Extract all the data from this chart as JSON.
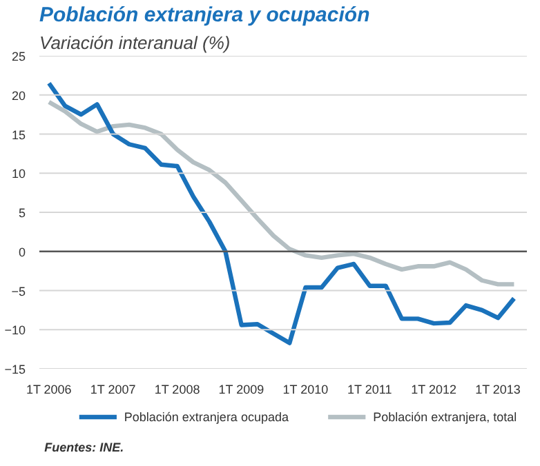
{
  "chart_data": {
    "type": "line",
    "title": "Población extranjera y ocupación",
    "subtitle": "Variación interanual (%)",
    "categories": [
      "1T 2006",
      null,
      null,
      null,
      "1T 2007",
      null,
      null,
      null,
      "1T 2008",
      null,
      null,
      null,
      "1T 2009",
      null,
      null,
      null,
      "1T 2010",
      null,
      null,
      null,
      "1T 2011",
      null,
      null,
      null,
      "1T 2012",
      null,
      null,
      null,
      "1T 2013",
      null
    ],
    "series": [
      {
        "name": "Población extranjera ocupada",
        "color": "#1a72bb",
        "values": [
          21.5,
          18.6,
          17.5,
          18.8,
          15,
          13.7,
          13.2,
          11.1,
          10.9,
          7,
          3.8,
          0,
          -9.4,
          -9.3,
          -10.5,
          -11.7,
          -4.6,
          -4.6,
          -2.1,
          -1.6,
          -4.4,
          -4.4,
          -8.6,
          -8.6,
          -9.2,
          -9.1,
          -6.9,
          -7.5,
          -8.5,
          -6
        ]
      },
      {
        "name": "Población extranjera, total",
        "color": "#b4bfc3",
        "values": [
          19.1,
          17.9,
          16.3,
          15.3,
          16,
          16.2,
          15.8,
          15,
          13,
          11.4,
          10.4,
          8.8,
          6.5,
          4.2,
          2,
          0.3,
          -0.5,
          -0.8,
          -0.5,
          -0.3,
          -0.8,
          -1.6,
          -2.3,
          -1.9,
          -1.9,
          -1.4,
          -2.3,
          -3.7,
          -4.2,
          -4.2
        ]
      }
    ],
    "ylim": [
      -15,
      25
    ],
    "yticks": [
      -15,
      -10,
      -5,
      0,
      5,
      10,
      15,
      20,
      25
    ],
    "grid": "y",
    "legend": "bottom",
    "line_style": "solid",
    "ref_lines": [
      {
        "axis": "y",
        "value": 0,
        "color": "#555555"
      }
    ],
    "annotations": [
      "Fuentes: INE."
    ]
  }
}
